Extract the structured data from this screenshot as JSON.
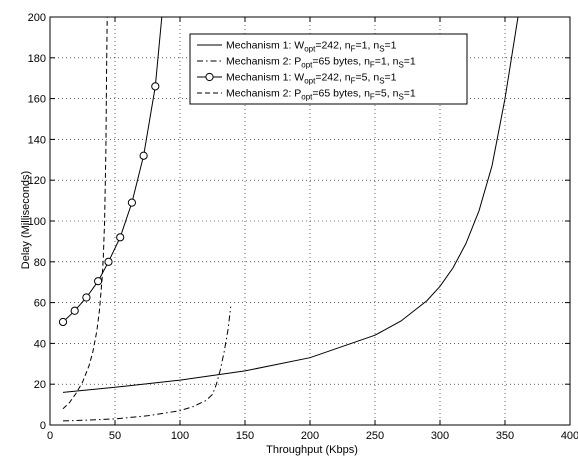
{
  "chart_data": {
    "type": "line",
    "xlabel": "Throughput (Kbps)",
    "ylabel": "Delay (Milliseconds)",
    "xlim": [
      0,
      400
    ],
    "ylim": [
      0,
      200
    ],
    "xticks": [
      0,
      50,
      100,
      150,
      200,
      250,
      300,
      350,
      400
    ],
    "yticks": [
      0,
      20,
      40,
      60,
      80,
      100,
      120,
      140,
      160,
      180,
      200
    ],
    "grid": true,
    "legend_position": "top-right",
    "series": [
      {
        "name": "Mechanism 1: W_opt=242, n_F=1, n_S=1",
        "legend": {
          "prefix": "Mechanism 1: W",
          "sub1": "opt",
          "mid1": "=242, n",
          "sub2": "F",
          "mid2": "=1, n",
          "sub3": "S",
          "suffix": "=1"
        },
        "line_style": "solid",
        "marker": "none",
        "x": [
          10,
          50,
          100,
          150,
          200,
          250,
          270,
          290,
          300,
          310,
          320,
          330,
          340,
          350,
          355,
          360,
          364
        ],
        "y": [
          16,
          18.5,
          22,
          26.5,
          33,
          44,
          51,
          61,
          68,
          77,
          89,
          105,
          127,
          160,
          180,
          200,
          210
        ]
      },
      {
        "name": "Mechanism 2: P_opt=65 bytes, n_F=1, n_S=1",
        "legend": {
          "prefix": "Mechanism 2: P",
          "sub1": "opt",
          "mid1": "=65 bytes, n",
          "sub2": "F",
          "mid2": "=1, n",
          "sub3": "S",
          "suffix": "=1"
        },
        "line_style": "dashdot",
        "marker": "none",
        "x": [
          10,
          25,
          50,
          75,
          100,
          110,
          120,
          125,
          128,
          131,
          134,
          137,
          139
        ],
        "y": [
          2,
          2.3,
          3,
          4.5,
          7,
          9,
          12,
          15,
          20,
          27,
          36,
          47,
          58
        ]
      },
      {
        "name": "Mechanism 1: W_opt=242, n_F=5, n_S=1",
        "legend": {
          "prefix": "Mechanism 1: W",
          "sub1": "opt",
          "mid1": "=242, n",
          "sub2": "F",
          "mid2": "=5, n",
          "sub3": "S",
          "suffix": "=1"
        },
        "line_style": "solid",
        "marker": "circle",
        "x": [
          10,
          19,
          28,
          37,
          45,
          54,
          63,
          72,
          81,
          86
        ],
        "y": [
          50.5,
          56,
          62.5,
          70.5,
          80,
          92,
          109,
          132,
          166,
          200
        ],
        "marker_x": [
          10,
          19,
          28,
          37,
          45,
          54,
          63,
          72,
          81
        ],
        "marker_y": [
          50.5,
          56,
          62.5,
          70.5,
          80,
          92,
          109,
          132,
          166
        ]
      },
      {
        "name": "Mechanism 2: P_opt=65 bytes, n_F=5, n_S=1",
        "legend": {
          "prefix": "Mechanism 2: P",
          "sub1": "opt",
          "mid1": "=65 bytes, n",
          "sub2": "F",
          "mid2": "=5, n",
          "sub3": "S",
          "suffix": "=1"
        },
        "line_style": "dashed",
        "marker": "none",
        "x": [
          10,
          15,
          20,
          25,
          30,
          33,
          36,
          38,
          40,
          41,
          42,
          43,
          43.5,
          44
        ],
        "y": [
          8,
          11,
          15.5,
          21,
          29,
          36,
          46,
          56,
          71,
          82,
          100,
          135,
          170,
          200
        ]
      }
    ]
  }
}
